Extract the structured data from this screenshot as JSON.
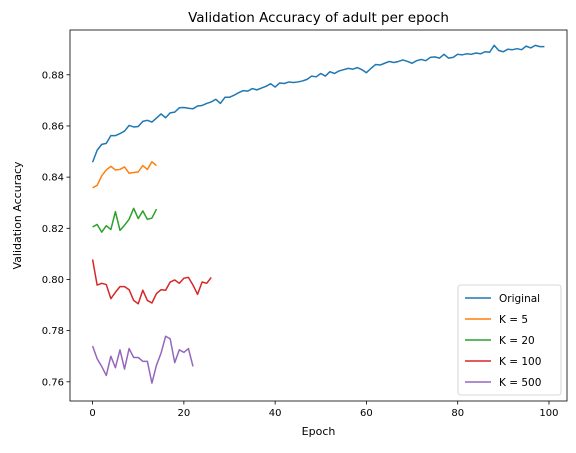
{
  "chart_data": {
    "type": "line",
    "title": "Validation Accuracy of adult per epoch",
    "xlabel": "Epoch",
    "ylabel": "Validation Accuracy",
    "xlim": [
      -4.95,
      103.95
    ],
    "ylim": [
      0.7525,
      0.8975
    ],
    "xticks": [
      "0",
      "20",
      "40",
      "60",
      "80",
      "100"
    ],
    "xtick_values": [
      0,
      20,
      40,
      60,
      80,
      100
    ],
    "yticks": [
      "0.76",
      "0.78",
      "0.80",
      "0.82",
      "0.84",
      "0.86",
      "0.88"
    ],
    "ytick_values": [
      0.76,
      0.78,
      0.8,
      0.82,
      0.84,
      0.86,
      0.88
    ],
    "grid": false,
    "legend_position": "lower-right",
    "series": [
      {
        "name": "Original",
        "color": "#1f77b4",
        "x_start": 0,
        "values": [
          0.8458,
          0.8505,
          0.8528,
          0.8532,
          0.8562,
          0.8562,
          0.857,
          0.858,
          0.8602,
          0.8596,
          0.8598,
          0.8618,
          0.8622,
          0.8615,
          0.8631,
          0.8647,
          0.8632,
          0.8651,
          0.8654,
          0.8671,
          0.8672,
          0.8669,
          0.8667,
          0.8678,
          0.868,
          0.8688,
          0.8694,
          0.8704,
          0.8688,
          0.8712,
          0.8712,
          0.872,
          0.873,
          0.8738,
          0.8736,
          0.8746,
          0.8741,
          0.8748,
          0.8755,
          0.8765,
          0.8752,
          0.8768,
          0.8766,
          0.8772,
          0.877,
          0.8772,
          0.8776,
          0.8782,
          0.8795,
          0.8792,
          0.8805,
          0.8795,
          0.8812,
          0.8805,
          0.8815,
          0.882,
          0.8825,
          0.8822,
          0.8828,
          0.882,
          0.8808,
          0.8825,
          0.884,
          0.8838,
          0.8845,
          0.8852,
          0.8848,
          0.8852,
          0.8858,
          0.8852,
          0.8845,
          0.8855,
          0.886,
          0.8855,
          0.8868,
          0.887,
          0.8865,
          0.888,
          0.8865,
          0.8868,
          0.888,
          0.8878,
          0.8882,
          0.888,
          0.8885,
          0.8882,
          0.889,
          0.8888,
          0.8915,
          0.8895,
          0.889,
          0.89,
          0.8898,
          0.8902,
          0.8898,
          0.8912,
          0.8905,
          0.8915,
          0.891,
          0.891
        ]
      },
      {
        "name": "K = 5",
        "color": "#ff7f0e",
        "x_start": 0,
        "values": [
          0.8358,
          0.8368,
          0.8405,
          0.8428,
          0.8442,
          0.8428,
          0.843,
          0.844,
          0.8415,
          0.8418,
          0.842,
          0.8445,
          0.843,
          0.846,
          0.8445
        ]
      },
      {
        "name": "K = 20",
        "color": "#2ca02c",
        "x_start": 0,
        "values": [
          0.8205,
          0.8215,
          0.8185,
          0.821,
          0.8195,
          0.8265,
          0.8192,
          0.8212,
          0.8235,
          0.8278,
          0.8238,
          0.8268,
          0.8235,
          0.824,
          0.8275
        ]
      },
      {
        "name": "K = 100",
        "color": "#d62728",
        "x_start": 0,
        "values": [
          0.8078,
          0.7978,
          0.7985,
          0.798,
          0.7925,
          0.795,
          0.7972,
          0.7972,
          0.796,
          0.7918,
          0.7905,
          0.7958,
          0.7918,
          0.7908,
          0.7945,
          0.796,
          0.7958,
          0.799,
          0.7998,
          0.7985,
          0.8005,
          0.8008,
          0.7978,
          0.7942,
          0.799,
          0.7985,
          0.8008
        ]
      },
      {
        "name": "K = 500",
        "color": "#9467bd",
        "x_start": 0,
        "values": [
          0.774,
          0.769,
          0.766,
          0.7625,
          0.77,
          0.7655,
          0.7725,
          0.765,
          0.773,
          0.7695,
          0.7695,
          0.768,
          0.768,
          0.7595,
          0.7665,
          0.7712,
          0.7778,
          0.7768,
          0.7675,
          0.7725,
          0.7715,
          0.773,
          0.766
        ]
      }
    ]
  }
}
